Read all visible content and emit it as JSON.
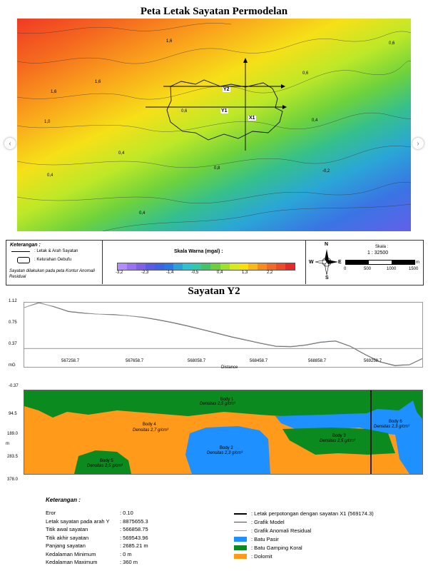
{
  "map": {
    "title": "Peta Letak Sayatan Permodelan",
    "contour_labels": [
      "1,6",
      "1,6",
      "1,6",
      "1,0",
      "0,6",
      "0,6",
      "0,4",
      "0,4",
      "0,8",
      "0,4",
      "0,4",
      "-0,2",
      "0,6"
    ],
    "section_labels": {
      "y2": "Y2",
      "y1": "Y1",
      "x1": "X1"
    }
  },
  "legend": {
    "heading": "Keterangan :",
    "items": [
      ": Letak & Arah Sayatan",
      ": Kelurahan Oebufu"
    ],
    "note": "Sayatan dilakukan pada peta Kontur Anomali Residual",
    "colorscale_title": "Skala Warna (mgal) :",
    "colorscale_ticks": [
      "-3,2",
      "-2,3",
      "-1,4",
      "-0,5",
      "0,4",
      "1,3",
      "2,2"
    ],
    "colorscale_colors": [
      "#b38cff",
      "#9a72f6",
      "#8060ea",
      "#5b5be8",
      "#3d63e6",
      "#2b77e3",
      "#2aa0dd",
      "#2ec1cf",
      "#33c9a6",
      "#44c46a",
      "#6ccf3b",
      "#9ee22b",
      "#d7ea1e",
      "#f6e00f",
      "#fbb818",
      "#f98a1c",
      "#f26a24",
      "#ee4b27",
      "#e42a2a"
    ],
    "compass": {
      "n": "N",
      "s": "S",
      "e": "E",
      "w": "W"
    },
    "scale_label": "Skala :",
    "scale_ratio": "1 : 32500",
    "scale_ticks": [
      "0",
      "500",
      "1000",
      "1500"
    ],
    "scale_unit": "m"
  },
  "section": {
    "title": "Sayatan Y2",
    "unit_label": "mG",
    "distance_label": "Distance",
    "depth_unit": "m",
    "bodies": [
      {
        "name": "Body 1",
        "density": "Densitas 2,5 g/cm³"
      },
      {
        "name": "Body 4",
        "density": "Densitas 2,7 g/cm³"
      },
      {
        "name": "Body 2",
        "density": "Densitas 2,3 g/cm³"
      },
      {
        "name": "Body 3",
        "density": "Densitas 2,5 g/cm³"
      },
      {
        "name": "Body 5",
        "density": "Densitas 2,5 g/cm³"
      },
      {
        "name": "Body 6",
        "density": "Densitas 2,3 g/cm³"
      }
    ]
  },
  "chart_data": {
    "type": "line",
    "xlabel": "Distance",
    "ylabel": "mG",
    "x_ticks": [
      "567258.7",
      "567658.7",
      "568058.7",
      "568458.7",
      "568858.7",
      "569258.7"
    ],
    "y_ticks": [
      "1.12",
      "0.75",
      "0.37",
      "-0.37"
    ],
    "ylim": [
      -0.45,
      1.12
    ],
    "x": [
      566858.75,
      566958,
      567058,
      567158,
      567258.7,
      567358,
      567458,
      567558,
      567658.7,
      567758,
      567858,
      567958,
      568058.7,
      568158,
      568258,
      568358,
      568458.7,
      568558,
      568658,
      568758,
      568858.7,
      568958,
      569058,
      569158,
      569258.7,
      569358,
      569458,
      569543.96
    ],
    "series": [
      {
        "name": "Grafik Model",
        "values": [
          1.0,
          1.12,
          1.02,
          0.9,
          0.86,
          0.84,
          0.83,
          0.8,
          0.76,
          0.7,
          0.63,
          0.55,
          0.46,
          0.37,
          0.28,
          0.2,
          0.12,
          0.05,
          0.04,
          0.08,
          0.15,
          0.18,
          0.05,
          -0.15,
          -0.33,
          -0.42,
          -0.4,
          -0.25
        ]
      },
      {
        "name": "Grafik Anomali Residual",
        "values": [
          1.0,
          1.11,
          1.03,
          0.91,
          0.87,
          0.84,
          0.82,
          0.8,
          0.77,
          0.71,
          0.64,
          0.56,
          0.47,
          0.38,
          0.29,
          0.21,
          0.13,
          0.06,
          0.05,
          0.09,
          0.16,
          0.19,
          0.06,
          -0.14,
          -0.32,
          -0.41,
          -0.39,
          -0.24
        ]
      }
    ],
    "depth_ticks": [
      "94.5",
      "189.0",
      "283.5",
      "378.0"
    ]
  },
  "keterangan": {
    "heading": "Keterangan :",
    "rows": [
      {
        "k": "Eror",
        "v": ": 0.10"
      },
      {
        "k": "Letak sayatan pada arah Y",
        "v": ": 8875655.3"
      },
      {
        "k": "Titik awal sayatan",
        "v": ": 566858.75"
      },
      {
        "k": "Titik akhir sayatan",
        "v": ": 569543.96"
      },
      {
        "k": "Panjang sayatan",
        "v": ": 2685.21 m"
      },
      {
        "k": "Kedalaman Minimum",
        "v": ": 0 m"
      },
      {
        "k": "Kedalaman Maximum",
        "v": ": 360 m"
      }
    ],
    "legend": [
      {
        "label": ": Letak perpotongan dengan sayatan X1 (569174.3)",
        "kind": "line",
        "color": "#000000"
      },
      {
        "label": ": Grafik Model",
        "kind": "thin",
        "color": "#444444"
      },
      {
        "label": ": Grafik Anomali Residual",
        "kind": "thin",
        "color": "#9aa0a6"
      },
      {
        "label": ": Batu Pasir",
        "kind": "box",
        "color": "#1e90ff"
      },
      {
        "label": ": Batu Gamping Koral",
        "kind": "box",
        "color": "#0a8a1f"
      },
      {
        "label": ": Dolomit",
        "kind": "box",
        "color": "#ff9a1a"
      }
    ]
  },
  "colors": {
    "sandstone": "#1e90ff",
    "coral": "#0a8a1f",
    "dolomite": "#ff9a1a"
  }
}
